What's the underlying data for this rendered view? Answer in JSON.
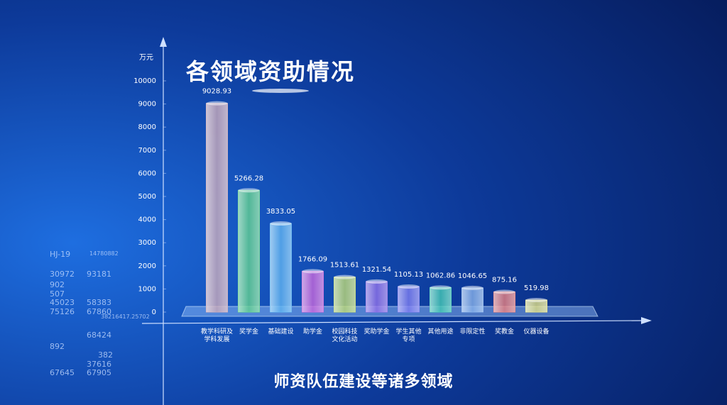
{
  "chart_data": {
    "type": "bar",
    "title": "各领域资助情况",
    "y_label": "万元",
    "caption": "师资队伍建设等诸多领域",
    "categories": [
      "教学科研及\n学科发展",
      "奖学金",
      "基础建设",
      "助学金",
      "校园科技\n文化活动",
      "奖助学金",
      "学生其他\n专项",
      "其他用途",
      "非限定性",
      "奖教金",
      "仪器设备"
    ],
    "values": [
      9028.93,
      5266.28,
      3833.05,
      1766.09,
      1513.61,
      1321.54,
      1105.13,
      1062.86,
      1046.65,
      875.16,
      519.98
    ],
    "colors": [
      "#c9a9b9",
      "#62d08e",
      "#5fb3f0",
      "#c866dc",
      "#bcd874",
      "#9070e8",
      "#7c7cf0",
      "#44c8b4",
      "#86b0ea",
      "#e88080",
      "#dede86"
    ],
    "ylim": [
      0,
      10000
    ],
    "yticks": [
      0,
      1000,
      2000,
      3000,
      4000,
      5000,
      6000,
      7000,
      8000,
      9000,
      10000
    ],
    "hud": [
      "HJ-19",
      "14780882",
      "30972",
      "93181",
      "902",
      "507",
      "45023",
      "58383",
      "75126",
      "67860",
      "38216417.25702",
      "68424",
      "892",
      "382",
      "37616",
      "67645",
      "67905"
    ]
  }
}
